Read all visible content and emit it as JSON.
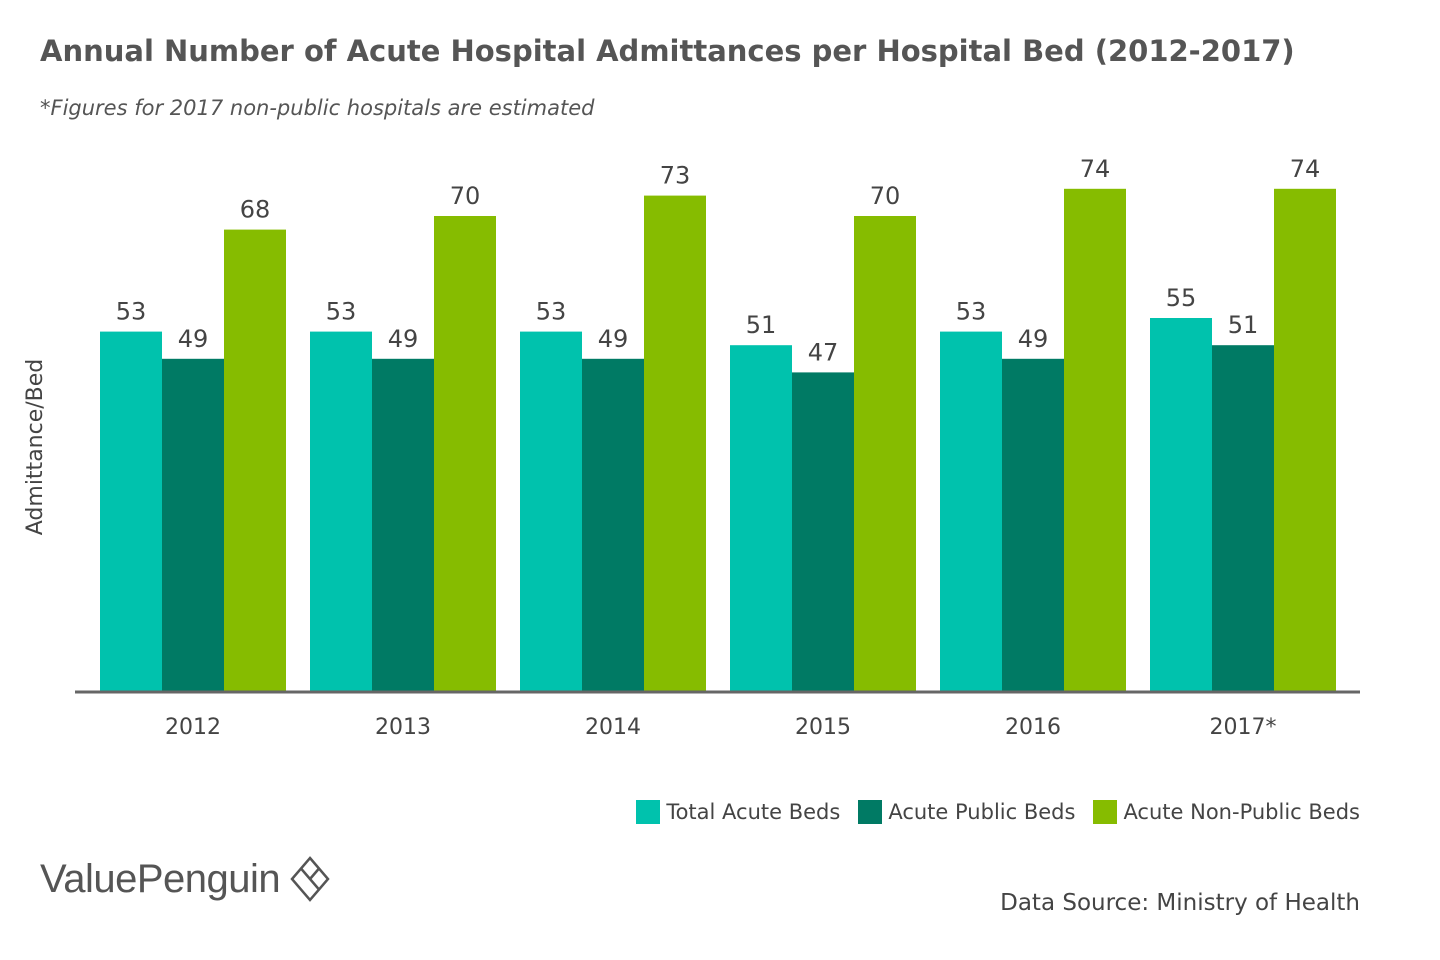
{
  "title": "Annual Number of Acute Hospital Admittances per Hospital Bed (2012-2017)",
  "subtitle": "*Figures for 2017 non-public hospitals are estimated",
  "brand": {
    "name": "ValuePenguin",
    "icon": "valuepenguin-diamond-logo"
  },
  "source": "Data Source: Ministry of Health",
  "chart_data": {
    "type": "bar",
    "categories": [
      "2012",
      "2013",
      "2014",
      "2015",
      "2016",
      "2017*"
    ],
    "series": [
      {
        "name": "Total Acute Beds",
        "color": "#00c2ad",
        "values": [
          53,
          53,
          53,
          51,
          53,
          55
        ]
      },
      {
        "name": "Acute Public Beds",
        "color": "#007a64",
        "values": [
          49,
          49,
          49,
          47,
          49,
          51
        ]
      },
      {
        "name": "Acute Non-Public Beds",
        "color": "#86bc00",
        "values": [
          68,
          70,
          73,
          70,
          74,
          74
        ]
      }
    ],
    "ylabel": "Admittance/Bed",
    "xlabel": "",
    "ylim": [
      0,
      80
    ],
    "grid": false,
    "data_labels": true,
    "legend_position": "bottom-right",
    "axis_color": "#666666"
  }
}
